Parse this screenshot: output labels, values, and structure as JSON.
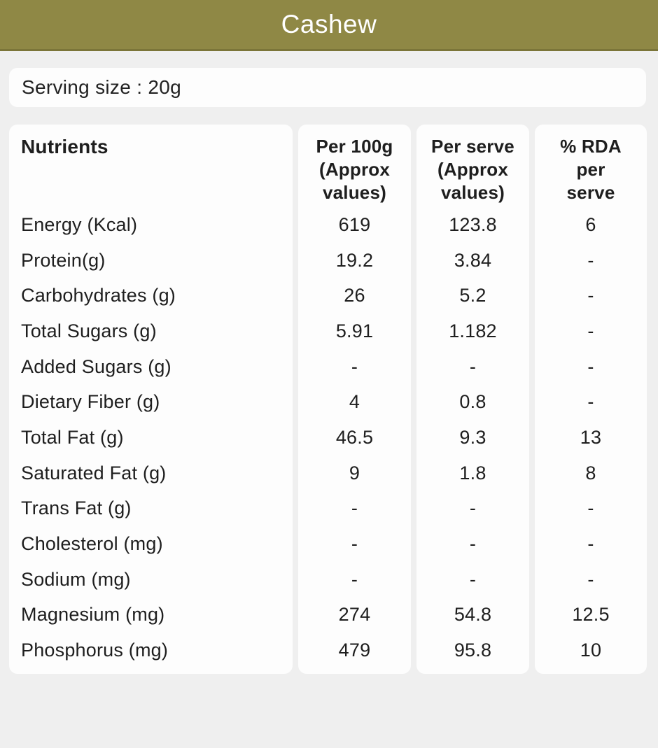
{
  "header": {
    "title": "Cashew"
  },
  "serving": {
    "text": "Serving size : 20g"
  },
  "colors": {
    "accent_olive": "#8f8845",
    "accent_olive_dark": "#7b7539",
    "page_background": "#efefef",
    "card_background": "#fdfdfd",
    "text": "#1e1e1e",
    "title_text": "#ffffff"
  },
  "table": {
    "columns": [
      {
        "title": "Nutrients"
      },
      {
        "l1": "Per 100g",
        "l2": "(Approx",
        "l3": "values)"
      },
      {
        "l1": "Per serve",
        "l2": "(Approx",
        "l3": "values)"
      },
      {
        "l1": "% RDA",
        "l2": "per",
        "l3": "serve"
      }
    ],
    "rows": [
      {
        "name": "Energy (Kcal)",
        "per_100g": "619",
        "per_serve": "123.8",
        "rda_per_serve": "6"
      },
      {
        "name": "Protein(g)",
        "per_100g": "19.2",
        "per_serve": "3.84",
        "rda_per_serve": "-"
      },
      {
        "name": "Carbohydrates (g)",
        "per_100g": "26",
        "per_serve": "5.2",
        "rda_per_serve": "-"
      },
      {
        "name": "Total Sugars (g)",
        "per_100g": "5.91",
        "per_serve": "1.182",
        "rda_per_serve": "-"
      },
      {
        "name": "Added Sugars (g)",
        "per_100g": "-",
        "per_serve": "-",
        "rda_per_serve": "-"
      },
      {
        "name": "Dietary Fiber (g)",
        "per_100g": "4",
        "per_serve": "0.8",
        "rda_per_serve": "-"
      },
      {
        "name": "Total Fat (g)",
        "per_100g": "46.5",
        "per_serve": "9.3",
        "rda_per_serve": "13"
      },
      {
        "name": "Saturated Fat (g)",
        "per_100g": "9",
        "per_serve": "1.8",
        "rda_per_serve": "8"
      },
      {
        "name": "Trans Fat (g)",
        "per_100g": "-",
        "per_serve": "-",
        "rda_per_serve": "-"
      },
      {
        "name": "Cholesterol (mg)",
        "per_100g": "-",
        "per_serve": "-",
        "rda_per_serve": "-"
      },
      {
        "name": "Sodium (mg)",
        "per_100g": "-",
        "per_serve": "-",
        "rda_per_serve": "-"
      },
      {
        "name": "Magnesium (mg)",
        "per_100g": "274",
        "per_serve": "54.8",
        "rda_per_serve": "12.5"
      },
      {
        "name": "Phosphorus (mg)",
        "per_100g": "479",
        "per_serve": "95.8",
        "rda_per_serve": "10"
      }
    ]
  }
}
